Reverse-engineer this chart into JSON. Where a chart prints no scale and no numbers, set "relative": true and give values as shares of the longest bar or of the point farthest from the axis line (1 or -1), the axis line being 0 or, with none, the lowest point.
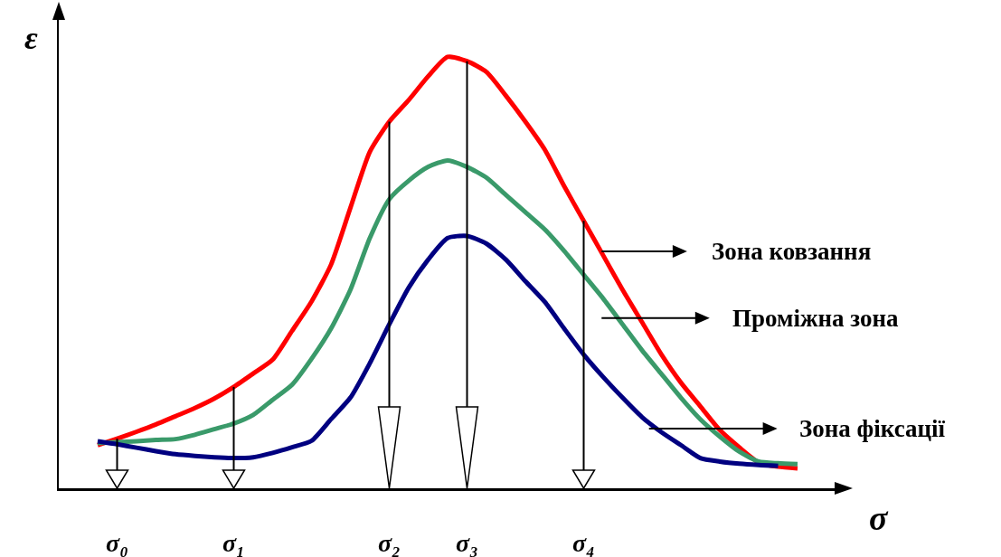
{
  "chart_data": {
    "type": "line",
    "relative": true,
    "xlabel": "σ",
    "ylabel": "ε",
    "categories": [
      null,
      null,
      null,
      "σ₀",
      null,
      null,
      null,
      null,
      null,
      "σ₁",
      null,
      null,
      null,
      null,
      null,
      null,
      null,
      "σ₂",
      null,
      null,
      null,
      "σ₃",
      null,
      null,
      null,
      null,
      null,
      "σ₄",
      null,
      null,
      null,
      null,
      null,
      null,
      null,
      null,
      null,
      null,
      null,
      null,
      null
    ],
    "series": [
      {
        "color": "#ff0000",
        "values": [
          null,
          null,
          0.1,
          0.115,
          0.131,
          0.148,
          0.167,
          0.186,
          0.208,
          0.235,
          0.266,
          0.298,
          0.365,
          0.433,
          0.518,
          0.65,
          0.78,
          0.85,
          0.9,
          0.955,
          1,
          0.99,
          0.965,
          0.91,
          0.85,
          0.785,
          0.7,
          0.62,
          0.54,
          0.46,
          0.385,
          0.31,
          0.245,
          0.19,
          0.135,
          0.095,
          0.06,
          0.05,
          0.046,
          null,
          null
        ]
      },
      {
        "color": "#3a9a6a",
        "values": [
          null,
          null,
          0.105,
          0.107,
          0.109,
          0.112,
          0.114,
          0.124,
          0.137,
          0.15,
          0.17,
          0.205,
          0.24,
          0.3,
          0.37,
          0.46,
          0.58,
          0.67,
          0.713,
          0.745,
          0.76,
          0.745,
          0.72,
          0.68,
          0.64,
          0.6,
          0.55,
          0.495,
          0.44,
          0.38,
          0.32,
          0.265,
          0.21,
          0.16,
          0.12,
          0.085,
          0.062,
          0.058,
          0.056,
          null,
          null
        ]
      },
      {
        "color": "#000080",
        "values": [
          null,
          null,
          0.109,
          0.102,
          0.094,
          0.086,
          0.079,
          0.075,
          0.072,
          0.07,
          0.072,
          0.082,
          0.095,
          0.11,
          0.16,
          0.21,
          0.29,
          0.38,
          0.465,
          0.53,
          0.58,
          0.585,
          0.567,
          0.53,
          0.48,
          0.432,
          0.37,
          0.31,
          0.258,
          0.21,
          0.165,
          0.13,
          0.1,
          0.07,
          0.062,
          0.057,
          0.054,
          0.052,
          null,
          null,
          null
        ]
      }
    ],
    "annotations": [
      "Зона ковзання",
      "Проміжна зона",
      "Зона фіксації"
    ]
  }
}
